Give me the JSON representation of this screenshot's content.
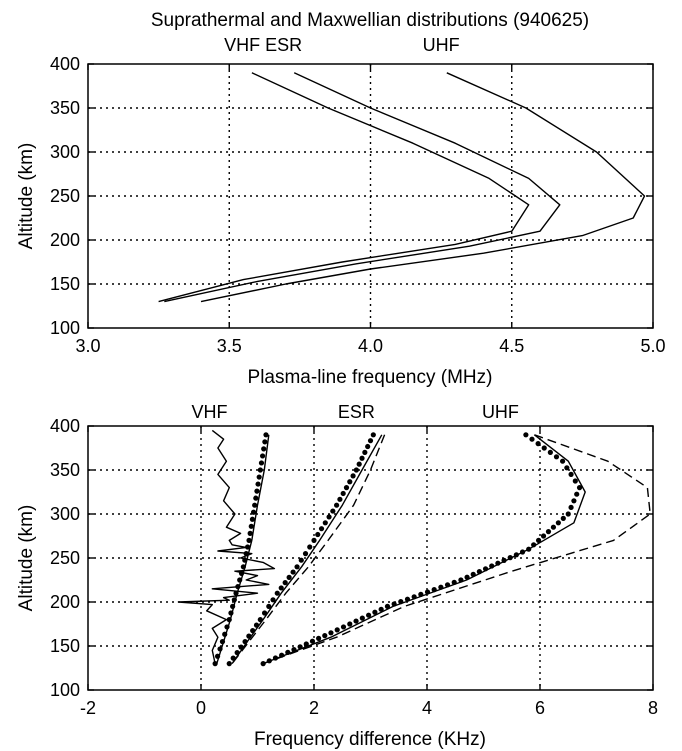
{
  "chart_data": [
    {
      "type": "line",
      "title": "Suprathermal and Maxwellian distributions (940625)",
      "xlabel": "Plasma-line frequency (MHz)",
      "ylabel": "Altitude (km)",
      "xlim": [
        3.0,
        5.0
      ],
      "ylim": [
        100,
        400
      ],
      "xticks": [
        "3.0",
        "3.5",
        "4.0",
        "4.5",
        "5.0"
      ],
      "yticks": [
        "100",
        "150",
        "200",
        "250",
        "300",
        "350",
        "400"
      ],
      "grid": "dotted",
      "annotations": [
        {
          "text": "VHF ESR",
          "x": 3.62
        },
        {
          "text": "UHF",
          "x": 4.25
        }
      ],
      "series": [
        {
          "style": "solid",
          "x": [
            3.58,
            3.85,
            4.15,
            4.42,
            4.56,
            4.5,
            4.3,
            3.9,
            3.55,
            3.25
          ],
          "y": [
            390,
            350,
            310,
            270,
            240,
            210,
            195,
            175,
            155,
            130
          ]
        },
        {
          "style": "solid",
          "x": [
            3.73,
            4.0,
            4.3,
            4.56,
            4.67,
            4.6,
            4.35,
            3.95,
            3.6,
            3.27
          ],
          "y": [
            390,
            350,
            310,
            270,
            240,
            210,
            193,
            173,
            153,
            130
          ]
        },
        {
          "style": "solid",
          "x": [
            4.27,
            4.55,
            4.8,
            4.97,
            4.93,
            4.75,
            4.4,
            4.0,
            3.7,
            3.4
          ],
          "y": [
            390,
            350,
            300,
            250,
            225,
            205,
            185,
            167,
            150,
            130
          ]
        }
      ]
    },
    {
      "type": "line",
      "xlabel": "Frequency difference (KHz)",
      "ylabel": "Altitude (km)",
      "xlim": [
        -2,
        8
      ],
      "ylim": [
        100,
        400
      ],
      "xticks": [
        "-2",
        "0",
        "2",
        "4",
        "6",
        "8"
      ],
      "yticks": [
        "100",
        "150",
        "200",
        "250",
        "300",
        "350",
        "400"
      ],
      "grid": "dotted",
      "annotations": [
        {
          "text": "VHF",
          "x": 0.15
        },
        {
          "text": "ESR",
          "x": 2.75
        },
        {
          "text": "UHF",
          "x": 5.3
        }
      ],
      "series": [
        {
          "style": "solid-noisy",
          "x": [
            0.2,
            0.4,
            0.3,
            0.45,
            0.3,
            0.5,
            0.4,
            0.6,
            0.45,
            0.7,
            0.5,
            0.55,
            0.8,
            0.3,
            0.9,
            0.7,
            1.1,
            1.3,
            0.6,
            1.0,
            0.8,
            1.2,
            0.2,
            1.0,
            0.4,
            0.5,
            -0.4,
            0.2,
            0.1,
            0.45,
            0.2,
            0.3,
            0.2,
            0.25
          ],
          "y": [
            395,
            385,
            375,
            360,
            345,
            330,
            315,
            300,
            285,
            278,
            270,
            265,
            262,
            258,
            255,
            250,
            245,
            238,
            235,
            230,
            225,
            220,
            215,
            210,
            205,
            202,
            200,
            197,
            190,
            180,
            170,
            160,
            145,
            130
          ]
        },
        {
          "style": "dots",
          "x": [
            1.15,
            1.05,
            0.95,
            0.85,
            0.75,
            0.62,
            0.5,
            0.38,
            0.25
          ],
          "y": [
            390,
            350,
            310,
            270,
            240,
            210,
            180,
            155,
            130
          ]
        },
        {
          "style": "solid",
          "x": [
            1.2,
            1.12,
            1.0,
            0.9,
            0.78,
            0.64,
            0.52,
            0.4,
            0.28
          ],
          "y": [
            390,
            350,
            310,
            270,
            240,
            210,
            180,
            155,
            130
          ]
        },
        {
          "style": "dots",
          "x": [
            3.05,
            2.75,
            2.4,
            2.0,
            1.7,
            1.35,
            1.05,
            0.78,
            0.5
          ],
          "y": [
            390,
            350,
            310,
            270,
            240,
            210,
            180,
            155,
            130
          ]
        },
        {
          "style": "solid",
          "x": [
            3.2,
            2.85,
            2.5,
            2.1,
            1.78,
            1.42,
            1.1,
            0.82,
            0.55
          ],
          "y": [
            390,
            350,
            310,
            270,
            240,
            210,
            180,
            155,
            130
          ]
        },
        {
          "style": "dashed",
          "x": [
            3.25,
            3.0,
            2.7,
            2.25,
            1.9,
            1.5,
            1.15,
            0.85,
            0.55
          ],
          "y": [
            390,
            350,
            310,
            270,
            240,
            210,
            180,
            155,
            130
          ]
        },
        {
          "style": "dots",
          "x": [
            5.75,
            6.4,
            6.7,
            6.5,
            5.8,
            4.6,
            3.3,
            2.3,
            1.1
          ],
          "y": [
            390,
            360,
            330,
            300,
            260,
            225,
            195,
            165,
            130
          ]
        },
        {
          "style": "solid",
          "x": [
            5.9,
            6.5,
            6.8,
            6.6,
            5.8,
            4.7,
            3.4,
            2.3,
            1.1
          ],
          "y": [
            390,
            360,
            325,
            290,
            260,
            225,
            195,
            160,
            130
          ]
        },
        {
          "style": "dashed",
          "x": [
            5.9,
            7.2,
            7.9,
            7.95,
            7.3,
            5.5,
            3.6,
            2.4,
            1.1
          ],
          "y": [
            390,
            360,
            330,
            300,
            270,
            235,
            195,
            160,
            130
          ]
        }
      ]
    }
  ]
}
